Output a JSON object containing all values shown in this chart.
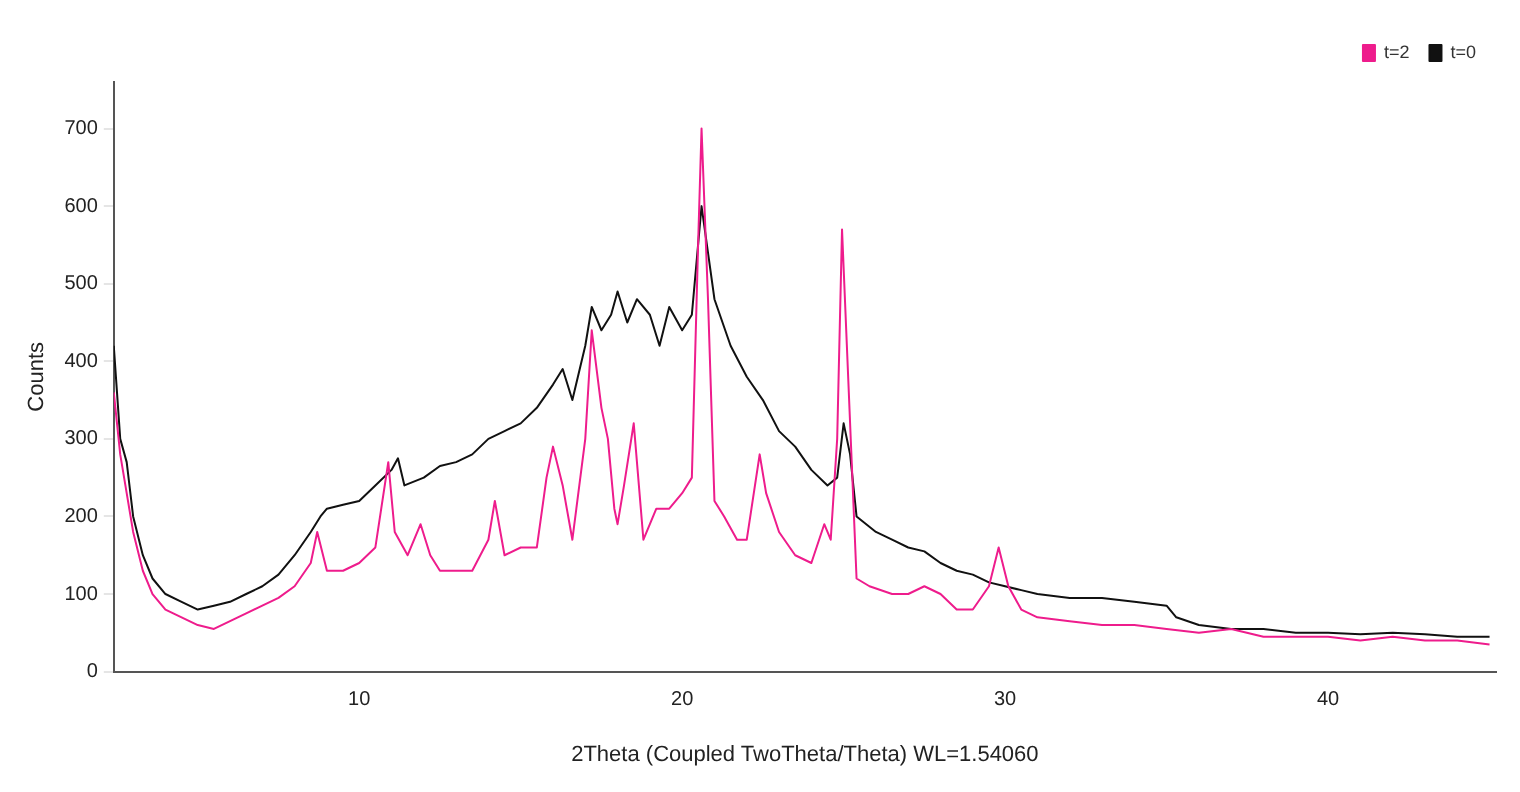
{
  "chart_data": {
    "type": "line",
    "xlabel": "2Theta (Coupled TwoTheta/Theta) WL=1.54060",
    "ylabel": "Counts",
    "xlim": [
      2.4,
      45.2
    ],
    "xticks": [
      10,
      20,
      30,
      40
    ],
    "ylim": [
      0,
      760
    ],
    "yticks": [
      0,
      100,
      200,
      300,
      400,
      500,
      600,
      700
    ],
    "grid": false,
    "legend": "top right",
    "marker": "none",
    "line_style": "solid",
    "series": [
      {
        "name": "t=2",
        "color": "#ee1c8c",
        "x": [
          2.4,
          2.6,
          2.8,
          3,
          3.3,
          3.6,
          4,
          4.5,
          5,
          5.5,
          6,
          6.5,
          7,
          7.5,
          8,
          8.5,
          8.7,
          9,
          9.5,
          10,
          10.5,
          10.9,
          11.1,
          11.5,
          11.9,
          12.2,
          12.5,
          13,
          13.5,
          14,
          14.2,
          14.5,
          15,
          15.5,
          15.8,
          16,
          16.3,
          16.6,
          17,
          17.2,
          17.5,
          17.7,
          17.9,
          18,
          18.2,
          18.5,
          18.8,
          19.2,
          19.6,
          20,
          20.3,
          20.5,
          20.6,
          20.8,
          21,
          21.3,
          21.7,
          22,
          22.4,
          22.6,
          23,
          23.5,
          24,
          24.4,
          24.6,
          24.8,
          24.95,
          25.1,
          25.4,
          25.8,
          26.5,
          27,
          27.5,
          28,
          28.5,
          29,
          29.5,
          29.8,
          30.1,
          30.5,
          31,
          32,
          33,
          34,
          35,
          36,
          37,
          38,
          39,
          40,
          41,
          42,
          43,
          44,
          45
        ],
        "values": [
          360,
          280,
          230,
          180,
          130,
          100,
          80,
          70,
          60,
          55,
          65,
          75,
          85,
          95,
          110,
          140,
          180,
          130,
          130,
          140,
          160,
          270,
          180,
          150,
          190,
          150,
          130,
          130,
          130,
          170,
          220,
          150,
          160,
          160,
          250,
          290,
          240,
          170,
          300,
          440,
          340,
          300,
          210,
          190,
          240,
          320,
          170,
          210,
          210,
          230,
          250,
          560,
          700,
          480,
          220,
          200,
          170,
          170,
          280,
          230,
          180,
          150,
          140,
          190,
          170,
          300,
          570,
          420,
          120,
          110,
          100,
          100,
          110,
          100,
          80,
          80,
          110,
          160,
          110,
          80,
          70,
          65,
          60,
          60,
          55,
          50,
          55,
          45,
          45,
          45,
          40,
          45,
          40,
          40,
          35
        ]
      },
      {
        "name": "t=0",
        "color": "#111111",
        "x": [
          2.4,
          2.6,
          2.8,
          3,
          3.3,
          3.6,
          4,
          4.5,
          5,
          5.5,
          6,
          6.5,
          7,
          7.5,
          8,
          8.5,
          8.8,
          9,
          9.5,
          10,
          10.5,
          11,
          11.2,
          11.4,
          12,
          12.5,
          13,
          13.5,
          14,
          14.5,
          15,
          15.5,
          16,
          16.3,
          16.6,
          17,
          17.2,
          17.5,
          17.8,
          18,
          18.3,
          18.6,
          19,
          19.3,
          19.6,
          20,
          20.3,
          20.6,
          20.8,
          21,
          21.5,
          22,
          22.5,
          23,
          23.5,
          24,
          24.5,
          24.8,
          25,
          25.2,
          25.4,
          26,
          26.5,
          27,
          27.5,
          28,
          28.5,
          29,
          29.5,
          30,
          30.5,
          31,
          32,
          33,
          34,
          35,
          35.3,
          36,
          37,
          38,
          39,
          40,
          41,
          42,
          43,
          44,
          45
        ],
        "values": [
          420,
          300,
          270,
          200,
          150,
          120,
          100,
          90,
          80,
          85,
          90,
          100,
          110,
          125,
          150,
          180,
          200,
          210,
          215,
          220,
          240,
          260,
          275,
          240,
          250,
          265,
          270,
          280,
          300,
          310,
          320,
          340,
          370,
          390,
          350,
          420,
          470,
          440,
          460,
          490,
          450,
          480,
          460,
          420,
          470,
          440,
          460,
          600,
          540,
          480,
          420,
          380,
          350,
          310,
          290,
          260,
          240,
          250,
          320,
          280,
          200,
          180,
          170,
          160,
          155,
          140,
          130,
          125,
          115,
          110,
          105,
          100,
          95,
          95,
          90,
          85,
          70,
          60,
          55,
          55,
          50,
          50,
          48,
          50,
          48,
          45,
          45
        ]
      }
    ]
  }
}
